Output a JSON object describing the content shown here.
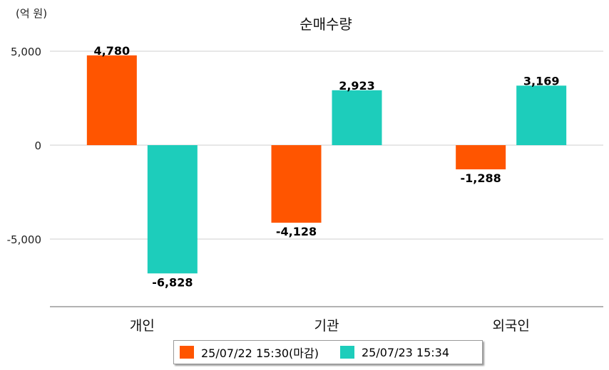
{
  "chart_data": {
    "type": "bar",
    "title": "순매수량",
    "unit_label": "(억 원)",
    "categories": [
      "개인",
      "기관",
      "외국인"
    ],
    "series": [
      {
        "name": "25/07/22 15:30(마감)",
        "color": "#ff5500",
        "values": [
          4780,
          -4128,
          -1288
        ],
        "labels": [
          "4,780",
          "-4,128",
          "-1,288"
        ]
      },
      {
        "name": "25/07/23 15:34",
        "color": "#1dcdbb",
        "values": [
          -6828,
          2923,
          3169
        ],
        "labels": [
          "-6,828",
          "2,923",
          "3,169"
        ]
      }
    ],
    "yticks": [
      {
        "value": 5000,
        "label": "5,000"
      },
      {
        "value": 0,
        "label": "0"
      },
      {
        "value": -5000,
        "label": "-5,000"
      }
    ],
    "ylim": [
      -8500,
      5000
    ],
    "grid": true,
    "legend_position": "bottom"
  }
}
